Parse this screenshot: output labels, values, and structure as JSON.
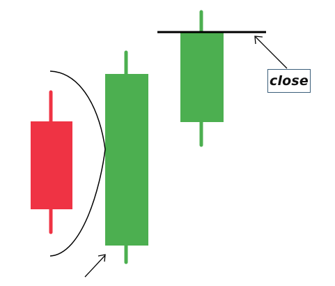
{
  "colors": {
    "bearish": "#ef3344",
    "bullish": "#4caf50",
    "line": "#000000",
    "label_border": "#3b5e7a"
  },
  "candles": [
    {
      "name": "bearish-candle",
      "direction": "down"
    },
    {
      "name": "large-bullish-candle",
      "direction": "up"
    },
    {
      "name": "gap-up-bullish-candle",
      "direction": "up"
    }
  ],
  "annotation": {
    "label": "close"
  }
}
